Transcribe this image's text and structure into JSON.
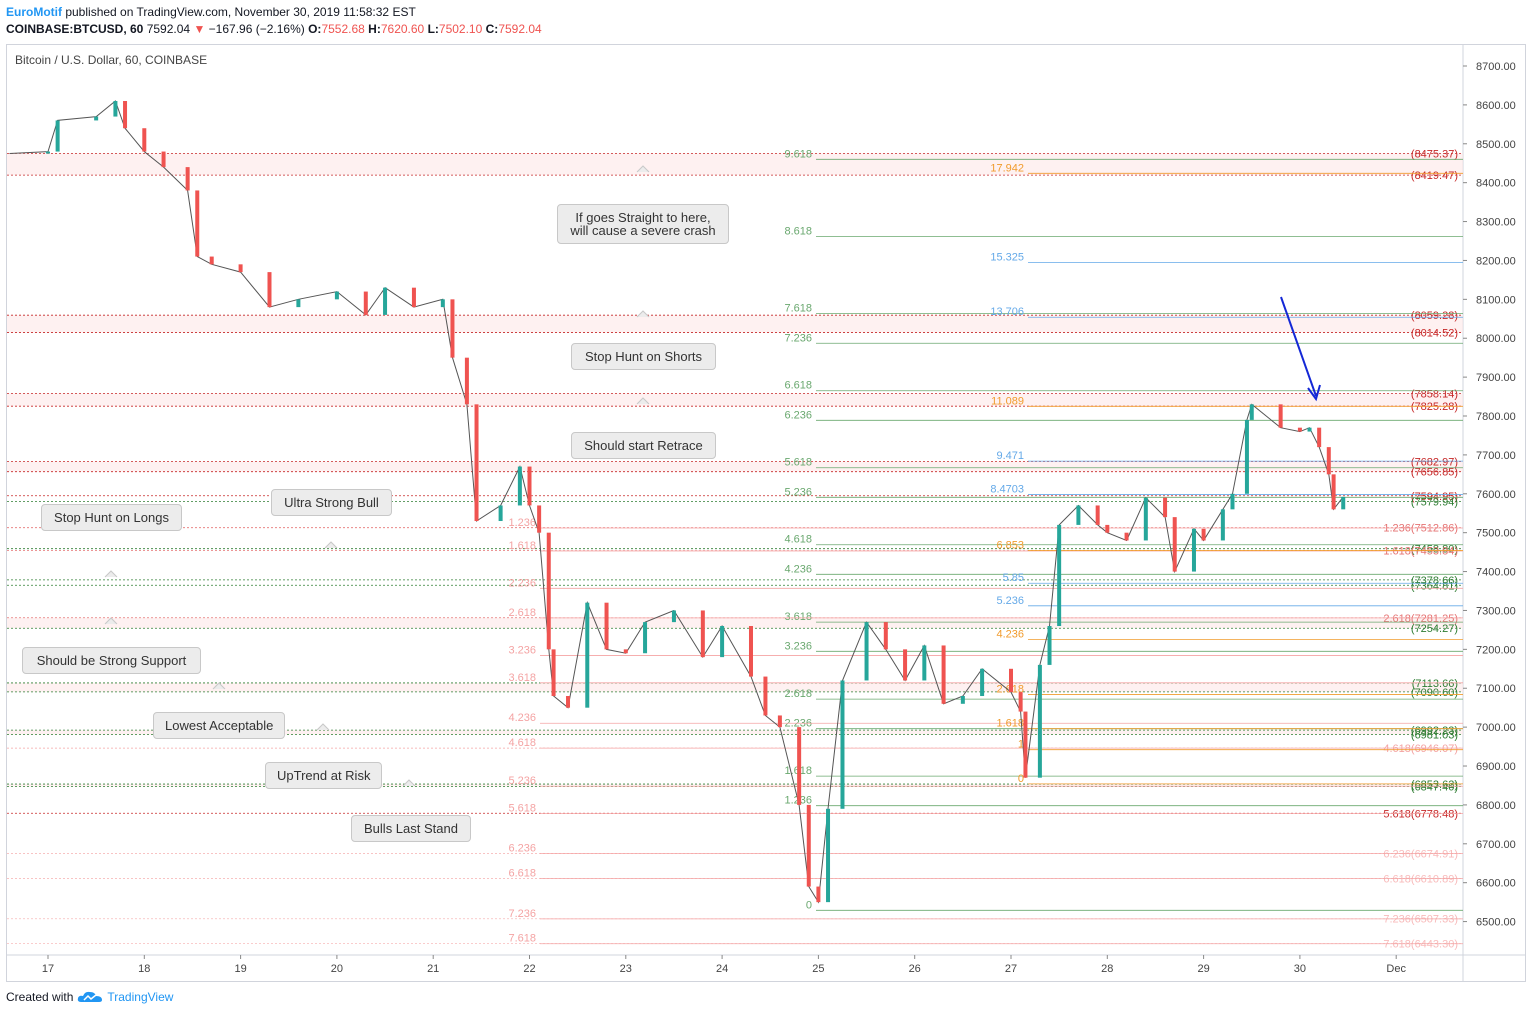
{
  "header": {
    "brand": "EuroMotif",
    "published": " published on TradingView.com, November 30, 2019 11:58:32 EST",
    "symbol": "COINBASE:BTCUSD, 60",
    "price": "7592.04",
    "change": "−167.96 (−2.16%)",
    "o_label": "O:",
    "o_value": "7552.68",
    "h_label": "H:",
    "h_value": "7620.60",
    "l_label": "L:",
    "l_value": "7502.10",
    "c_label": "C:",
    "c_value": "7592.04"
  },
  "chart_title": "Bitcoin / U.S. Dollar, 60, COINBASE",
  "footer": {
    "created_with": "Created with",
    "brand": "TradingView"
  },
  "callouts": [
    "If goes Straight to here,\nwill cause a severe crash",
    "Stop Hunt on Shorts",
    "Should start Retrace",
    "Ultra Strong Bull",
    "Stop Hunt on Longs",
    "Should be Strong Support",
    "Lowest Acceptable",
    "UpTrend at Risk",
    "Bulls Last Stand"
  ],
  "colors": {
    "up": "#26a69a",
    "down": "#ef5350",
    "red_level": "#c62828",
    "green_level": "#388e3c",
    "blue_level": "#1e88e5",
    "orange_level": "#f57c00",
    "arrow": "#1428d6"
  },
  "chart_data": {
    "type": "candlestick",
    "title": "Bitcoin / U.S. Dollar, 60, COINBASE",
    "ylim": [
      6400,
      8760
    ],
    "y_ticks": [
      "8700.00",
      "8600.00",
      "8500.00",
      "8400.00",
      "8300.00",
      "8200.00",
      "8100.00",
      "8000.00",
      "7900.00",
      "7800.00",
      "7700.00",
      "7600.00",
      "7500.00",
      "7400.00",
      "7300.00",
      "7200.00",
      "7100.00",
      "7000.00",
      "6900.00",
      "6800.00",
      "6700.00",
      "6600.00",
      "6500.00"
    ],
    "x_ticks": [
      "17",
      "18",
      "19",
      "20",
      "21",
      "22",
      "23",
      "24",
      "25",
      "26",
      "27",
      "28",
      "29",
      "30",
      "Dec"
    ],
    "price_path": [
      [
        16.6,
        8475
      ],
      [
        17.0,
        8480
      ],
      [
        17.1,
        8560
      ],
      [
        17.5,
        8570
      ],
      [
        17.7,
        8610
      ],
      [
        17.8,
        8540
      ],
      [
        18.0,
        8480
      ],
      [
        18.2,
        8440
      ],
      [
        18.45,
        8380
      ],
      [
        18.55,
        8210
      ],
      [
        18.7,
        8190
      ],
      [
        19.0,
        8170
      ],
      [
        19.3,
        8080
      ],
      [
        19.6,
        8100
      ],
      [
        20.0,
        8120
      ],
      [
        20.3,
        8060
      ],
      [
        20.5,
        8130
      ],
      [
        20.8,
        8080
      ],
      [
        21.1,
        8100
      ],
      [
        21.2,
        7950
      ],
      [
        21.35,
        7830
      ],
      [
        21.45,
        7530
      ],
      [
        21.7,
        7570
      ],
      [
        21.9,
        7670
      ],
      [
        22.0,
        7570
      ],
      [
        22.1,
        7500
      ],
      [
        22.2,
        7200
      ],
      [
        22.25,
        7080
      ],
      [
        22.4,
        7050
      ],
      [
        22.6,
        7320
      ],
      [
        22.8,
        7200
      ],
      [
        23.0,
        7190
      ],
      [
        23.2,
        7270
      ],
      [
        23.5,
        7300
      ],
      [
        23.8,
        7180
      ],
      [
        24.0,
        7260
      ],
      [
        24.3,
        7130
      ],
      [
        24.45,
        7030
      ],
      [
        24.6,
        7000
      ],
      [
        24.8,
        6800
      ],
      [
        24.9,
        6590
      ],
      [
        25.0,
        6550
      ],
      [
        25.1,
        6790
      ],
      [
        25.25,
        7120
      ],
      [
        25.5,
        7270
      ],
      [
        25.7,
        7200
      ],
      [
        25.9,
        7120
      ],
      [
        26.1,
        7210
      ],
      [
        26.3,
        7060
      ],
      [
        26.5,
        7080
      ],
      [
        26.7,
        7150
      ],
      [
        27.0,
        7090
      ],
      [
        27.1,
        7040
      ],
      [
        27.15,
        6870
      ],
      [
        27.3,
        7160
      ],
      [
        27.4,
        7260
      ],
      [
        27.5,
        7520
      ],
      [
        27.7,
        7570
      ],
      [
        27.9,
        7520
      ],
      [
        28.0,
        7500
      ],
      [
        28.2,
        7480
      ],
      [
        28.4,
        7590
      ],
      [
        28.6,
        7540
      ],
      [
        28.7,
        7400
      ],
      [
        28.9,
        7510
      ],
      [
        29.0,
        7480
      ],
      [
        29.2,
        7560
      ],
      [
        29.3,
        7600
      ],
      [
        29.45,
        7790
      ],
      [
        29.5,
        7830
      ],
      [
        29.8,
        7770
      ],
      [
        30.0,
        7760
      ],
      [
        30.1,
        7770
      ],
      [
        30.2,
        7720
      ],
      [
        30.3,
        7650
      ],
      [
        30.35,
        7560
      ],
      [
        30.45,
        7592
      ]
    ],
    "levels": [
      {
        "label": "(8475.37)",
        "value": 8475.37,
        "color": "#c62828"
      },
      {
        "label": "(8419.47)",
        "value": 8419.47,
        "color": "#c62828"
      },
      {
        "label": "(8059.28)",
        "value": 8059.28,
        "color": "#c62828"
      },
      {
        "label": "(8014.52)",
        "value": 8014.52,
        "color": "#c62828"
      },
      {
        "label": "(7858.14)",
        "value": 7858.14,
        "color": "#c62828"
      },
      {
        "label": "(7825.28)",
        "value": 7825.28,
        "color": "#c62828"
      },
      {
        "label": "(7682.97)",
        "value": 7682.97,
        "color": "#c62828"
      },
      {
        "label": "(7656.85)",
        "value": 7656.85,
        "color": "#c62828"
      },
      {
        "label": "(7594.95)",
        "value": 7594.95,
        "color": "#c62828"
      },
      {
        "label": "(7579.94)",
        "value": 7579.94,
        "color": "#2e7d32"
      },
      {
        "label": "1.236(7512.86)",
        "value": 7512.86,
        "color": "#e57373"
      },
      {
        "label": "(7458.80)",
        "value": 7458.8,
        "color": "#2e7d32"
      },
      {
        "label": "1.618(7453.84)",
        "value": 7453.84,
        "color": "#e57373"
      },
      {
        "label": "(7378.66)",
        "value": 7378.66,
        "color": "#2e7d32"
      },
      {
        "label": "(7364.81)",
        "value": 7364.81,
        "color": "#2e7d32"
      },
      {
        "label": "2.618(7281.25)",
        "value": 7281.25,
        "color": "#e57373"
      },
      {
        "label": "(7254.27)",
        "value": 7254.27,
        "color": "#2e7d32"
      },
      {
        "label": "(7113.66)",
        "value": 7113.66,
        "color": "#2e7d32"
      },
      {
        "label": "(7090.60)",
        "value": 7090.6,
        "color": "#2e7d32"
      },
      {
        "label": "(6992.23)",
        "value": 6992.23,
        "color": "#2e7d32"
      },
      {
        "label": "(6981.03)",
        "value": 6981.03,
        "color": "#2e7d32"
      },
      {
        "label": "4.618(6946.07)",
        "value": 6946.07,
        "color": "#f4a3a3"
      },
      {
        "label": "(6853.62)",
        "value": 6853.62,
        "color": "#2e7d32"
      },
      {
        "label": "(6847.40)",
        "value": 6847.4,
        "color": "#2e7d32"
      },
      {
        "label": "5.618(6778.48)",
        "value": 6778.48,
        "color": "#c62828"
      },
      {
        "label": "6.236(6674.91)",
        "value": 6674.91,
        "color": "#f8bbbb"
      },
      {
        "label": "6.618(6610.89)",
        "value": 6610.89,
        "color": "#f8bbbb"
      },
      {
        "label": "7.236(6507.33)",
        "value": 6507.33,
        "color": "#f8bbbb"
      },
      {
        "label": "7.618(6443.30)",
        "value": 6443.3,
        "color": "#f8bbbb"
      }
    ],
    "fib_green": [
      {
        "label": "9.618",
        "value": 8460
      },
      {
        "label": "8.618",
        "value": 8262
      },
      {
        "label": "7.618",
        "value": 8064
      },
      {
        "label": "7.236",
        "value": 7987
      },
      {
        "label": "6.618",
        "value": 7865
      },
      {
        "label": "6.236",
        "value": 7789
      },
      {
        "label": "5.618",
        "value": 7667
      },
      {
        "label": "5.236",
        "value": 7591
      },
      {
        "label": "4.618",
        "value": 7469
      },
      {
        "label": "4.236",
        "value": 7393
      },
      {
        "label": "3.618",
        "value": 7270
      },
      {
        "label": "3.236",
        "value": 7195
      },
      {
        "label": "2.618",
        "value": 7072
      },
      {
        "label": "2.236",
        "value": 6996
      },
      {
        "label": "1.618",
        "value": 6874
      },
      {
        "label": "1.236",
        "value": 6798
      },
      {
        "label": "0",
        "value": 6529
      }
    ],
    "fib_red": [
      {
        "label": "1.236",
        "value": 7512
      },
      {
        "label": "1.618",
        "value": 7453
      },
      {
        "label": "2.236",
        "value": 7357
      },
      {
        "label": "2.618",
        "value": 7281
      },
      {
        "label": "3.236",
        "value": 7184
      },
      {
        "label": "3.618",
        "value": 7114
      },
      {
        "label": "4.236",
        "value": 7010
      },
      {
        "label": "4.618",
        "value": 6946
      },
      {
        "label": "5.236",
        "value": 6848
      },
      {
        "label": "5.618",
        "value": 6778
      },
      {
        "label": "6.236",
        "value": 6675
      },
      {
        "label": "6.618",
        "value": 6611
      },
      {
        "label": "7.236",
        "value": 6507
      },
      {
        "label": "7.618",
        "value": 6443
      }
    ],
    "fib_orange": [
      {
        "label": "17.942",
        "value": 8424
      },
      {
        "label": "11.089",
        "value": 7825
      },
      {
        "label": "6.853",
        "value": 7454
      },
      {
        "label": "4.236",
        "value": 7225
      },
      {
        "label": "2.618",
        "value": 7084
      },
      {
        "label": "1.618",
        "value": 6996
      },
      {
        "label": "1",
        "value": 6942
      },
      {
        "label": "0",
        "value": 6854
      }
    ],
    "fib_blue": [
      {
        "label": "15.325",
        "value": 8195
      },
      {
        "label": "13.706",
        "value": 8054
      },
      {
        "label": "9.471",
        "value": 7684
      },
      {
        "label": "8.4703",
        "value": 7598
      },
      {
        "label": "5.85",
        "value": 7370
      },
      {
        "label": "5.236",
        "value": 7312
      }
    ],
    "highlight_bands": [
      [
        8419.47,
        8475.37
      ],
      [
        8014.52,
        8059.28
      ],
      [
        7825.28,
        7858.14
      ],
      [
        7656.85,
        7682.97
      ],
      [
        7254.27,
        7281.25
      ],
      [
        7090.6,
        7113.66
      ],
      [
        6981.03,
        6992.23
      ],
      [
        6847.4,
        6853.62
      ]
    ]
  }
}
